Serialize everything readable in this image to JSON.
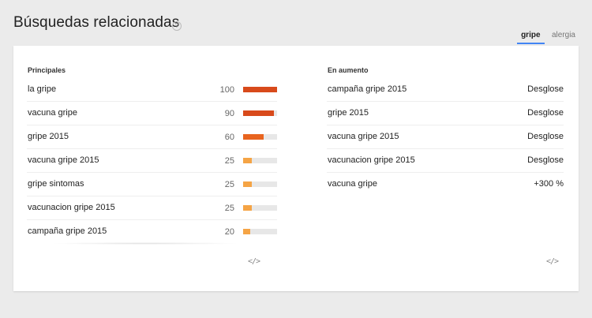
{
  "header": {
    "title": "Búsquedas relacionadas",
    "help_icon": "?"
  },
  "tabs": [
    {
      "label": "gripe",
      "active": true
    },
    {
      "label": "alergia",
      "active": false
    }
  ],
  "colors": {
    "accent": "#4285f4",
    "bar_high": "#d84a1b",
    "bar_mid": "#e8641f",
    "bar_low": "#f5a445",
    "track": "#e7e7e7"
  },
  "principales": {
    "title": "Principales",
    "embed_icon": "</>",
    "items": [
      {
        "label": "la gripe",
        "value": "100",
        "fraction": 1.0,
        "color": "#d84a1b"
      },
      {
        "label": "vacuna gripe",
        "value": "90",
        "fraction": 0.9,
        "color": "#d84a1b"
      },
      {
        "label": "gripe 2015",
        "value": "60",
        "fraction": 0.6,
        "color": "#e8641f"
      },
      {
        "label": "vacuna gripe 2015",
        "value": "25",
        "fraction": 0.25,
        "color": "#f5a445"
      },
      {
        "label": "gripe sintomas",
        "value": "25",
        "fraction": 0.25,
        "color": "#f5a445"
      },
      {
        "label": "vacunacion gripe 2015",
        "value": "25",
        "fraction": 0.25,
        "color": "#f5a445"
      },
      {
        "label": "campaña gripe 2015",
        "value": "20",
        "fraction": 0.2,
        "color": "#f5a445"
      }
    ]
  },
  "en_aumento": {
    "title": "En aumento",
    "embed_icon": "</>",
    "items": [
      {
        "label": "campaña gripe 2015",
        "value": "Desglose"
      },
      {
        "label": "gripe 2015",
        "value": "Desglose"
      },
      {
        "label": "vacuna gripe 2015",
        "value": "Desglose"
      },
      {
        "label": "vacunacion gripe 2015",
        "value": "Desglose"
      },
      {
        "label": "vacuna gripe",
        "value": "+300 %"
      }
    ]
  }
}
